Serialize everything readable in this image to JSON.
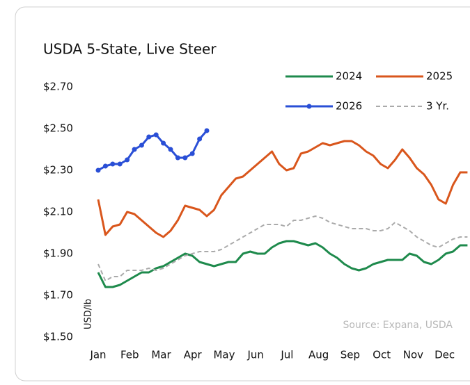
{
  "chart_data": {
    "type": "line",
    "title": "USDA 5-State, Live Steer",
    "y_label": "USD/lb",
    "annotation": "Source: Expana, USDA",
    "x": [
      1,
      2,
      3,
      4,
      5,
      6,
      7,
      8,
      9,
      10,
      11,
      12,
      13,
      14,
      15,
      16,
      17,
      18,
      19,
      20,
      21,
      22,
      23,
      24,
      25,
      26,
      27,
      28,
      29,
      30,
      31,
      32,
      33,
      34,
      35,
      36,
      37,
      38,
      39,
      40,
      41,
      42,
      43,
      44,
      45,
      46,
      47,
      48,
      49,
      50,
      51,
      52
    ],
    "xlim": [
      1,
      53
    ],
    "xticks": [
      {
        "value": 1,
        "label": "Jan"
      },
      {
        "value": 5.35,
        "label": "Feb"
      },
      {
        "value": 9.7,
        "label": "Mar"
      },
      {
        "value": 14.05,
        "label": "Apr"
      },
      {
        "value": 18.4,
        "label": "May"
      },
      {
        "value": 22.75,
        "label": "Jun"
      },
      {
        "value": 27.1,
        "label": "Jul"
      },
      {
        "value": 31.45,
        "label": "Aug"
      },
      {
        "value": 35.8,
        "label": "Sep"
      },
      {
        "value": 40.15,
        "label": "Oct"
      },
      {
        "value": 44.5,
        "label": "Nov"
      },
      {
        "value": 48.85,
        "label": "Dec"
      }
    ],
    "ylim": [
      1.5,
      2.7
    ],
    "yticks": [
      {
        "value": 1.5,
        "label": "$1.50"
      },
      {
        "value": 1.7,
        "label": "$1.70"
      },
      {
        "value": 1.9,
        "label": "$1.90"
      },
      {
        "value": 2.1,
        "label": "$2.10"
      },
      {
        "value": 2.3,
        "label": "$2.30"
      },
      {
        "value": 2.5,
        "label": "$2.50"
      },
      {
        "value": 2.7,
        "label": "$2.70"
      }
    ],
    "grid": false,
    "series": [
      {
        "name": "2024",
        "color": "#1e8a4c",
        "values": [
          1.81,
          1.74,
          1.74,
          1.75,
          1.77,
          1.79,
          1.81,
          1.81,
          1.83,
          1.84,
          1.86,
          1.88,
          1.9,
          1.89,
          1.86,
          1.85,
          1.84,
          1.85,
          1.86,
          1.86,
          1.9,
          1.91,
          1.9,
          1.9,
          1.93,
          1.95,
          1.96,
          1.96,
          1.95,
          1.94,
          1.95,
          1.93,
          1.9,
          1.88,
          1.85,
          1.83,
          1.82,
          1.83,
          1.85,
          1.86,
          1.87,
          1.87,
          1.87,
          1.9,
          1.89,
          1.86,
          1.85,
          1.87,
          1.9,
          1.91,
          1.94,
          1.94
        ]
      },
      {
        "name": "2025",
        "color": "#d9561c",
        "values": [
          2.16,
          1.99,
          2.03,
          2.04,
          2.1,
          2.09,
          2.06,
          2.03,
          2.0,
          1.98,
          2.01,
          2.06,
          2.13,
          2.12,
          2.11,
          2.08,
          2.11,
          2.18,
          2.22,
          2.26,
          2.27,
          2.3,
          2.33,
          2.36,
          2.39,
          2.33,
          2.3,
          2.31,
          2.38,
          2.39,
          2.41,
          2.43,
          2.42,
          2.43,
          2.44,
          2.44,
          2.42,
          2.39,
          2.37,
          2.33,
          2.31,
          2.35,
          2.4,
          2.36,
          2.31,
          2.28,
          2.23,
          2.16,
          2.14,
          2.23,
          2.29,
          2.29
        ]
      },
      {
        "name": "2026",
        "color": "#2a4fd6",
        "marker": "circle",
        "values": [
          2.3,
          2.32,
          2.33,
          2.33,
          2.35,
          2.4,
          2.42,
          2.46,
          2.47,
          2.43,
          2.4,
          2.36,
          2.36,
          2.38,
          2.45,
          2.49,
          null,
          null,
          null,
          null,
          null,
          null,
          null,
          null,
          null,
          null,
          null,
          null,
          null,
          null,
          null,
          null,
          null,
          null,
          null,
          null,
          null,
          null,
          null,
          null,
          null,
          null,
          null,
          null,
          null,
          null,
          null,
          null,
          null,
          null,
          null,
          null
        ]
      },
      {
        "name": "3 Yr.",
        "color": "#aaaaaa",
        "dash": true,
        "values": [
          1.85,
          1.77,
          1.79,
          1.79,
          1.82,
          1.82,
          1.82,
          1.83,
          1.82,
          1.83,
          1.85,
          1.87,
          1.89,
          1.9,
          1.91,
          1.91,
          1.91,
          1.92,
          1.94,
          1.96,
          1.98,
          2.0,
          2.02,
          2.04,
          2.04,
          2.04,
          2.03,
          2.06,
          2.06,
          2.07,
          2.08,
          2.07,
          2.05,
          2.04,
          2.03,
          2.02,
          2.02,
          2.02,
          2.01,
          2.01,
          2.02,
          2.05,
          2.03,
          2.01,
          1.98,
          1.96,
          1.94,
          1.93,
          1.95,
          1.97,
          1.98,
          1.98
        ]
      }
    ]
  }
}
